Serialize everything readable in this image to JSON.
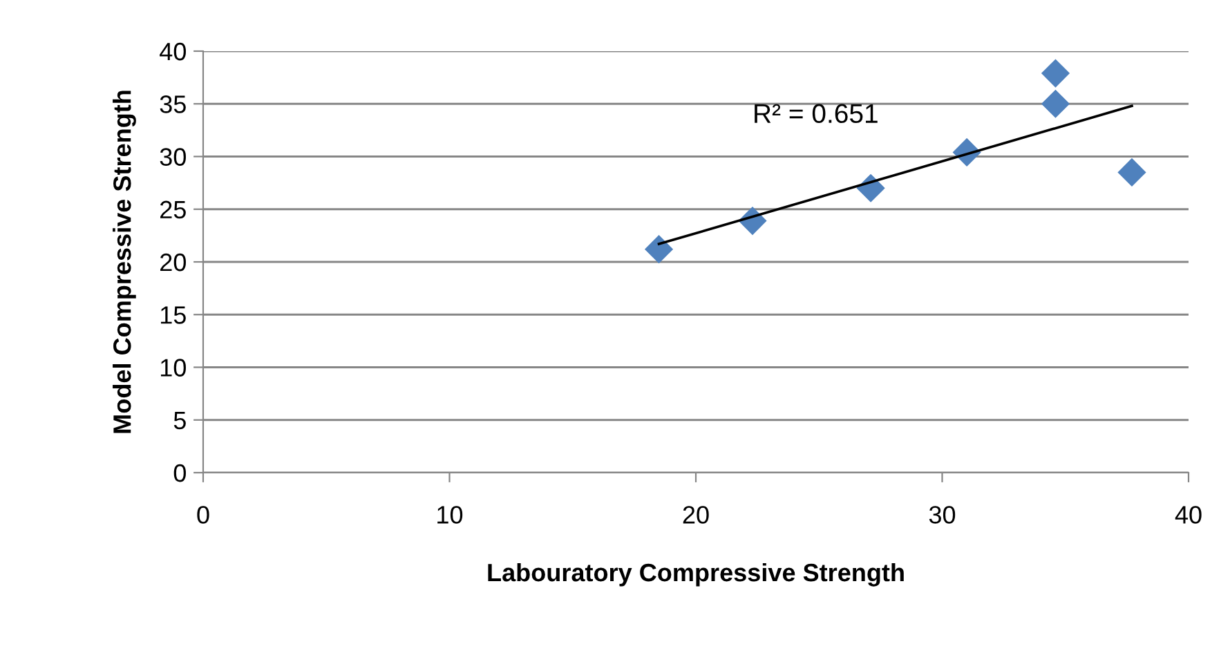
{
  "chart_data": {
    "type": "scatter",
    "xlabel": "Labouratory Compressive Strength",
    "ylabel": "Model Compressive Strength",
    "x": [
      18.5,
      22.3,
      27.1,
      31.0,
      34.6,
      34.6,
      37.7
    ],
    "series": [
      {
        "marker": "diamond",
        "color": "#4f81bd",
        "values": [
          21.2,
          23.9,
          27.0,
          30.4,
          37.9,
          35.0,
          28.5
        ]
      },
      {
        "type": "line",
        "color": "#000000",
        "x": [
          18.5,
          37.7
        ],
        "values": [
          21.7,
          34.8
        ]
      }
    ],
    "annotations": [
      "R² = 0.651"
    ],
    "xlim": [
      0,
      40
    ],
    "xticks": [
      0,
      10,
      20,
      30,
      40
    ],
    "ylim": [
      0,
      40
    ],
    "yticks": [
      0,
      5,
      10,
      15,
      20,
      25,
      30,
      35,
      40
    ],
    "grid": "y",
    "legend": false
  }
}
